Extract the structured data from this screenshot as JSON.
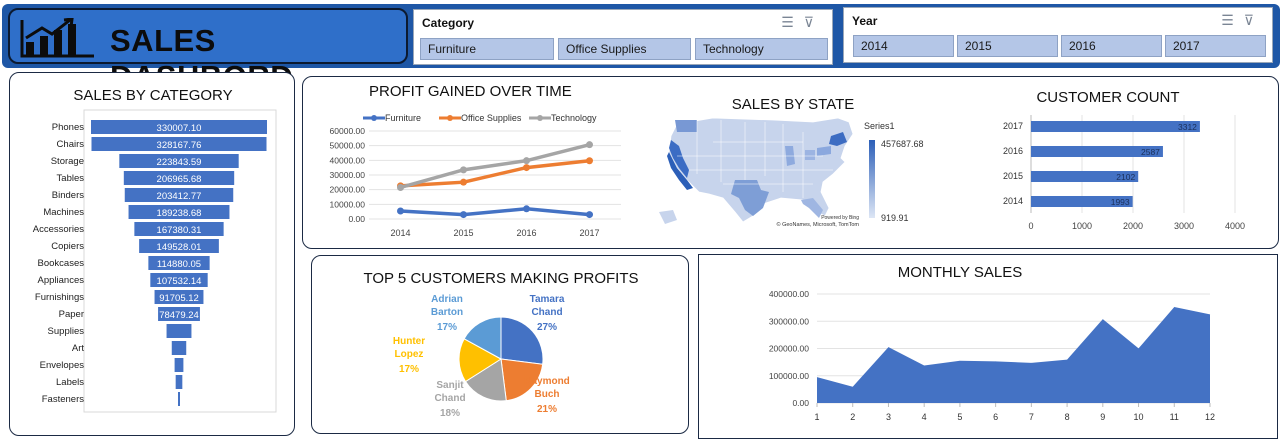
{
  "header": {
    "title": "SALES DASHBORD",
    "logo_icon": "bar-chart-trend-icon",
    "colors": {
      "band": "#1e57a6",
      "title_box": "#2f6fc9"
    }
  },
  "slicers": {
    "category": {
      "title": "Category",
      "items": [
        "Furniture",
        "Office Supplies",
        "Technology"
      ]
    },
    "year": {
      "title": "Year",
      "items": [
        "2014",
        "2015",
        "2016",
        "2017"
      ]
    },
    "icons": [
      "multi-select-icon",
      "clear-filter-icon"
    ]
  },
  "sales_by_category": {
    "title": "SALES BY CATEGORY"
  },
  "profit_over_time": {
    "title": "PROFIT GAINED OVER TIME"
  },
  "sales_by_state": {
    "title": "SALES BY STATE",
    "legend_series": "Series1",
    "legend_max": "457687.68",
    "legend_min": "919.91",
    "attribution_line1": "Powered by Bing",
    "attribution_line2": "© GeoNames, Microsoft, TomTom"
  },
  "customer_count": {
    "title": "CUSTOMER COUNT"
  },
  "top_customers": {
    "title": "TOP 5 CUSTOMERS MAKING PROFITS"
  },
  "monthly_sales": {
    "title": "MONTHLY SALES"
  },
  "chart_data": [
    {
      "id": "sales_by_category",
      "type": "bar",
      "orientation": "horizontal-funnel",
      "categories": [
        "Phones",
        "Chairs",
        "Storage",
        "Tables",
        "Binders",
        "Machines",
        "Accessories",
        "Copiers",
        "Bookcases",
        "Appliances",
        "Furnishings",
        "Paper",
        "Supplies",
        "Art",
        "Envelopes",
        "Labels",
        "Fasteners"
      ],
      "values": [
        330007.1,
        328167.76,
        223843.59,
        206965.68,
        203412.77,
        189238.68,
        167380.31,
        149528.01,
        114880.05,
        107532.14,
        91705.12,
        78479.24,
        46673.54,
        27118.79,
        16476.4,
        12486.31,
        3024.28
      ],
      "labels": [
        "330007.10",
        "328167.76",
        "223843.59",
        "206965.68",
        "203412.77",
        "189238.68",
        "167380.31",
        "149528.01",
        "114880.05",
        "107532.14",
        "91705.12",
        "78479.24",
        "",
        "",
        "",
        "",
        ""
      ],
      "color": "#4472c4"
    },
    {
      "id": "profit_over_time",
      "type": "line",
      "x": [
        "2014",
        "2015",
        "2016",
        "2017"
      ],
      "series": [
        {
          "name": "Furniture",
          "values": [
            5457.73,
            3015.2,
            6959.95,
            3018.39
          ],
          "color": "#4472c4"
        },
        {
          "name": "Office Supplies",
          "values": [
            22593.42,
            25099.53,
            35061.23,
            39736.62
          ],
          "color": "#ed7d31"
        },
        {
          "name": "Technology",
          "values": [
            21492.83,
            33503.87,
            39773.99,
            50684.26
          ],
          "color": "#a5a5a5"
        }
      ],
      "ylim": [
        0,
        60000
      ],
      "yticks": [
        "0.00",
        "10000.00",
        "20000.00",
        "30000.00",
        "40000.00",
        "50000.00",
        "60000.00"
      ],
      "legend": "top"
    },
    {
      "id": "customer_count",
      "type": "bar",
      "orientation": "horizontal",
      "categories": [
        "2017",
        "2016",
        "2015",
        "2014"
      ],
      "values": [
        3312,
        2587,
        2102,
        1993
      ],
      "labels": [
        "3312",
        "2587",
        "2102",
        "1993"
      ],
      "xlim": [
        0,
        4000
      ],
      "xticks": [
        "0",
        "1000",
        "2000",
        "3000",
        "4000"
      ],
      "color": "#4472c4"
    },
    {
      "id": "top_customers",
      "type": "pie",
      "slices": [
        {
          "label": "Tamara\nChand",
          "pct": "27%",
          "value": 27,
          "color": "#4472c4"
        },
        {
          "label": "Raymond\nBuch",
          "pct": "21%",
          "value": 21,
          "color": "#ed7d31"
        },
        {
          "label": "Sanjit\nChand",
          "pct": "18%",
          "value": 18,
          "color": "#a5a5a5"
        },
        {
          "label": "Hunter\nLopez",
          "pct": "17%",
          "value": 17,
          "color": "#ffc000"
        },
        {
          "label": "Adrian\nBarton",
          "pct": "17%",
          "value": 17,
          "color": "#5b9bd5"
        }
      ]
    },
    {
      "id": "monthly_sales",
      "type": "area",
      "x": [
        "1",
        "2",
        "3",
        "4",
        "5",
        "6",
        "7",
        "8",
        "9",
        "10",
        "11",
        "12"
      ],
      "values": [
        94925,
        59751,
        205005,
        137762,
        155029,
        152718,
        147238,
        159044,
        307649,
        200322,
        352461,
        325293
      ],
      "ylim": [
        0,
        400000
      ],
      "yticks": [
        "0.00",
        "100000.00",
        "200000.00",
        "300000.00",
        "400000.00"
      ],
      "color": "#4472c4"
    }
  ]
}
